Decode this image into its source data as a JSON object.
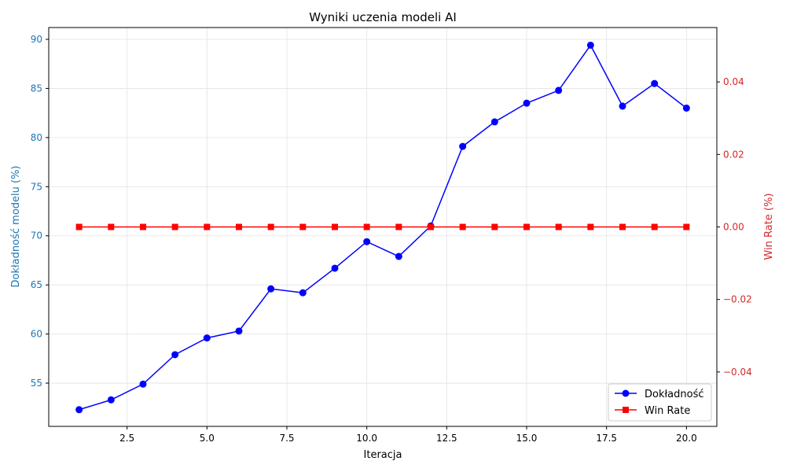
{
  "chart_data": {
    "type": "line",
    "title": "Wyniki uczenia modeli AI",
    "xlabel": "Iteracja",
    "ylabel_left": "Dokładność modelu (%)",
    "ylabel_right": "Win Rate (%)",
    "x": [
      1,
      2,
      3,
      4,
      5,
      6,
      7,
      8,
      9,
      10,
      11,
      12,
      13,
      14,
      15,
      16,
      17,
      18,
      19,
      20
    ],
    "xlim": [
      0.05,
      20.95
    ],
    "ylim_left": [
      50.6,
      91.2
    ],
    "ylim_right": [
      -0.055,
      0.055
    ],
    "x_ticks": [
      2.5,
      5.0,
      7.5,
      10.0,
      12.5,
      15.0,
      17.5,
      20.0
    ],
    "x_tick_labels": [
      "2.5",
      "5.0",
      "7.5",
      "10.0",
      "12.5",
      "15.0",
      "17.5",
      "20.0"
    ],
    "y_left_ticks": [
      55,
      60,
      65,
      70,
      75,
      80,
      85,
      90
    ],
    "y_left_tick_labels": [
      "55",
      "60",
      "65",
      "70",
      "75",
      "80",
      "85",
      "90"
    ],
    "y_right_ticks": [
      -0.04,
      -0.02,
      0.0,
      0.02,
      0.04
    ],
    "y_right_tick_labels": [
      "−0.04",
      "−0.02",
      "0.00",
      "0.02",
      "0.04"
    ],
    "grid": true,
    "legend_position": "bottom-right",
    "series": [
      {
        "name": "Dokładność",
        "axis": "left",
        "color": "#0000ff",
        "marker": "circle",
        "values": [
          52.3,
          53.3,
          54.9,
          57.9,
          59.6,
          60.3,
          64.6,
          64.2,
          66.7,
          69.4,
          67.9,
          71.0,
          79.1,
          81.6,
          83.5,
          84.8,
          89.4,
          83.2,
          85.5,
          83.0
        ]
      },
      {
        "name": "Win Rate",
        "axis": "right",
        "color": "#ff0000",
        "marker": "square",
        "values": [
          0,
          0,
          0,
          0,
          0,
          0,
          0,
          0,
          0,
          0,
          0,
          0,
          0,
          0,
          0,
          0,
          0,
          0,
          0,
          0
        ]
      }
    ],
    "left_axis_color": "#1f77b4",
    "right_axis_color": "#d62728"
  }
}
